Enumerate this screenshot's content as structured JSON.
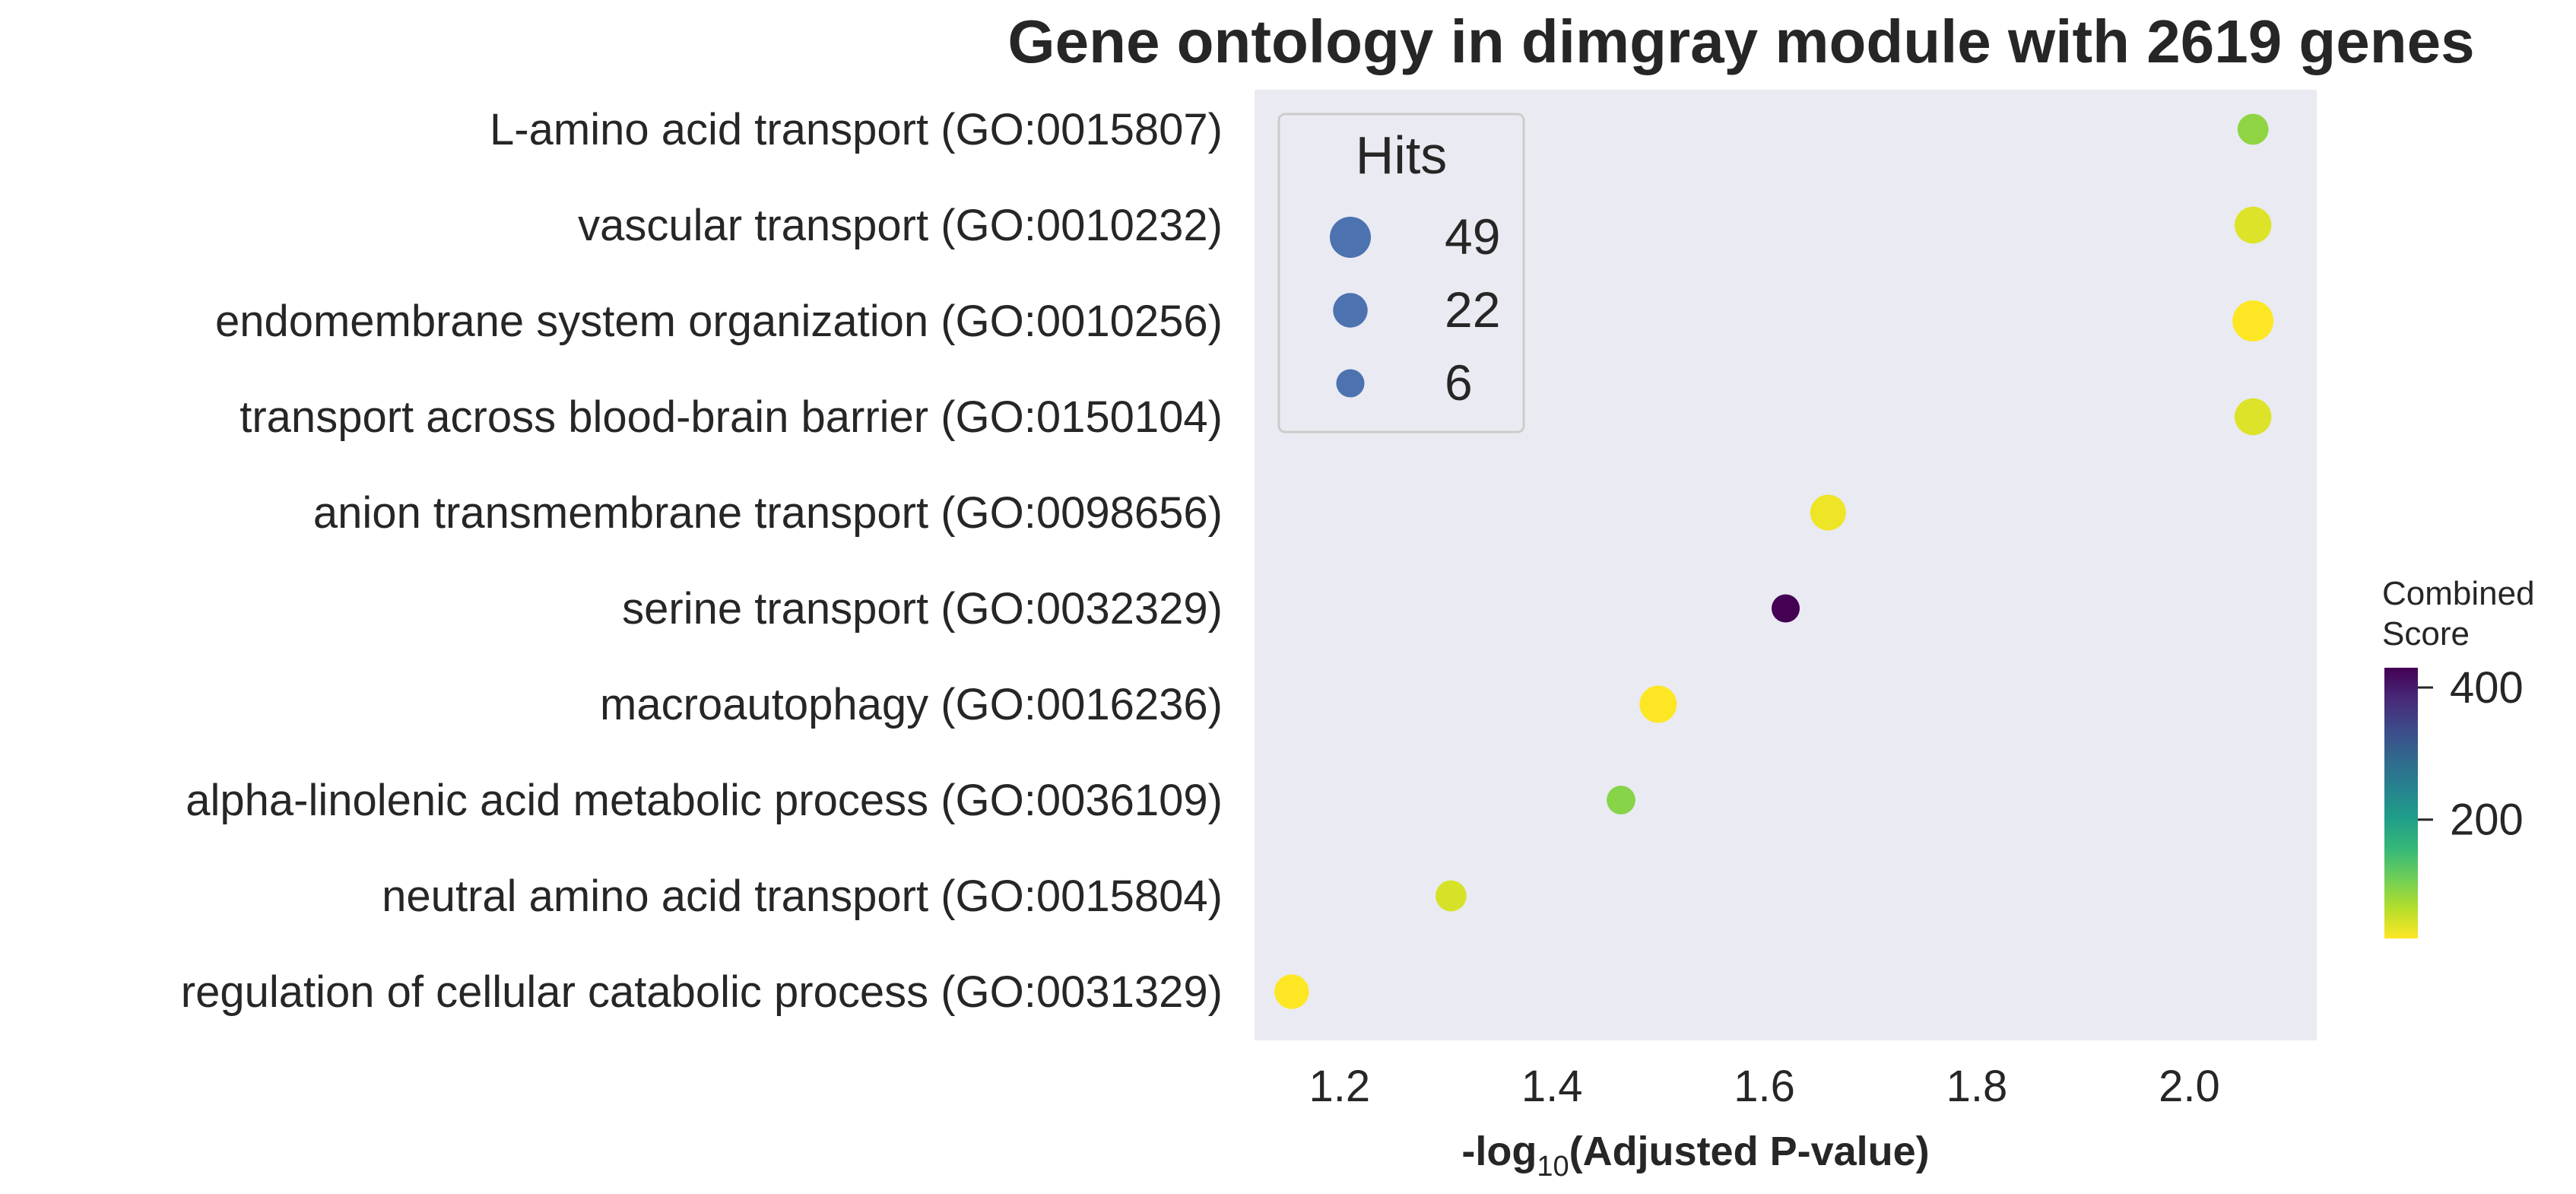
{
  "chart_data": {
    "type": "scatter",
    "title": "Gene ontology in dimgray module with 2619 genes",
    "xlabel": "-log10(Adjusted P-value)",
    "xlabel_parts": {
      "prefix": "-log",
      "subscript": "10",
      "suffix": "(Adjusted P-value)"
    },
    "ylabel": "",
    "xlim": [
      1.12,
      2.12
    ],
    "xticks": [
      1.2,
      1.4,
      1.6,
      1.8,
      2.0
    ],
    "xtick_labels": [
      "1.2",
      "1.4",
      "1.6",
      "1.8",
      "2.0"
    ],
    "grid": false,
    "background": "#eaeaf2",
    "categories": [
      "L-amino acid transport (GO:0015807)",
      "vascular transport (GO:0010232)",
      "endomembrane system organization (GO:0010256)",
      "transport across blood-brain barrier (GO:0150104)",
      "anion transmembrane transport (GO:0098656)",
      "serine transport (GO:0032329)",
      "macroautophagy (GO:0016236)",
      "alpha-linolenic acid metabolic process (GO:0036109)",
      "neutral amino acid transport (GO:0015804)",
      "regulation of cellular catabolic process (GO:0031329)"
    ],
    "points": [
      {
        "term": "L-amino acid transport (GO:0015807)",
        "x": 2.06,
        "hits": 12,
        "combined_score": 90
      },
      {
        "term": "vascular transport (GO:0010232)",
        "x": 2.06,
        "hits": 30,
        "combined_score": 40
      },
      {
        "term": "endomembrane system organization (GO:0010256)",
        "x": 2.06,
        "hits": 49,
        "combined_score": 20
      },
      {
        "term": "transport across blood-brain barrier (GO:0150104)",
        "x": 2.06,
        "hits": 30,
        "combined_score": 40
      },
      {
        "term": "anion transmembrane transport (GO:0098656)",
        "x": 1.66,
        "hits": 26,
        "combined_score": 30
      },
      {
        "term": "serine transport (GO:0032329)",
        "x": 1.62,
        "hits": 6,
        "combined_score": 430
      },
      {
        "term": "macroautophagy (GO:0016236)",
        "x": 1.5,
        "hits": 32,
        "combined_score": 20
      },
      {
        "term": "alpha-linolenic acid metabolic process (GO:0036109)",
        "x": 1.465,
        "hits": 7,
        "combined_score": 95
      },
      {
        "term": "neutral amino acid transport (GO:0015804)",
        "x": 1.305,
        "hits": 12,
        "combined_score": 45
      },
      {
        "term": "regulation of cellular catabolic process (GO:0031329)",
        "x": 1.155,
        "hits": 22,
        "combined_score": 20
      }
    ],
    "size_legend": {
      "title": "Hits",
      "placement": "top-left",
      "entries": [
        {
          "label": "49",
          "hits": 49
        },
        {
          "label": "22",
          "hits": 22
        },
        {
          "label": "6",
          "hits": 6
        }
      ],
      "marker_color": "#4c72b0"
    },
    "colorbar": {
      "title_lines": [
        "Combined",
        "Score"
      ],
      "colormap": "viridis",
      "range": [
        20,
        430
      ],
      "ticks": [
        400,
        200
      ],
      "tick_labels": [
        "400",
        "200"
      ],
      "stops": [
        "#440154",
        "#482878",
        "#3e4989",
        "#31688e",
        "#26828e",
        "#1f9e89",
        "#35b779",
        "#6ece58",
        "#b5de2b",
        "#fde725"
      ]
    }
  }
}
